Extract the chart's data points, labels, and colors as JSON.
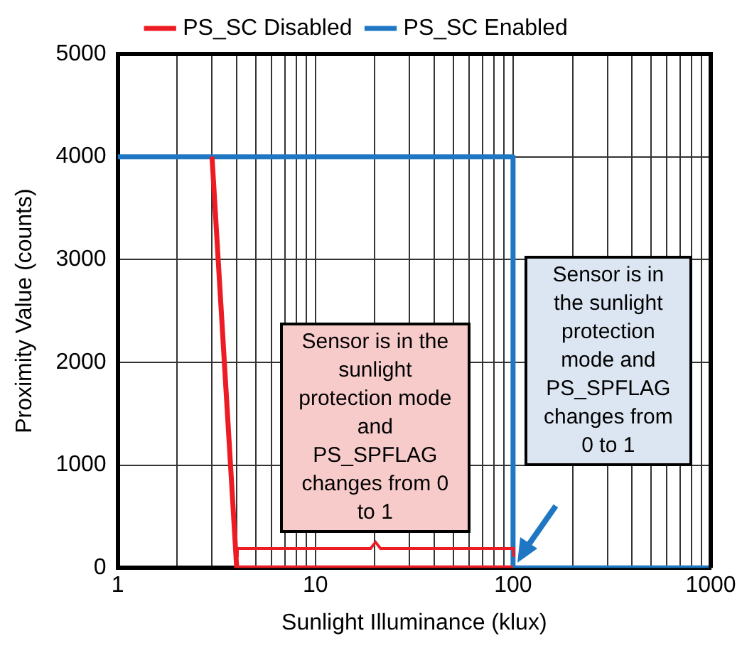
{
  "chart_data": {
    "type": "line",
    "xlabel": "Sunlight Illuminance (klux)",
    "ylabel": "Proximity Value (counts)",
    "log": "x",
    "grid": true,
    "legend": "top",
    "marker": "none",
    "line_style": "solid",
    "xlim": [
      1,
      1000
    ],
    "xticks": [
      1,
      {
        "value": 2,
        "label": null
      },
      {
        "value": 3,
        "label": null
      },
      {
        "value": 4,
        "label": null
      },
      {
        "value": 5,
        "label": null
      },
      {
        "value": 6,
        "label": null
      },
      {
        "value": 7,
        "label": null
      },
      {
        "value": 8,
        "label": null
      },
      {
        "value": 9,
        "label": null
      },
      10,
      {
        "value": 20,
        "label": null
      },
      {
        "value": 30,
        "label": null
      },
      {
        "value": 40,
        "label": null
      },
      {
        "value": 50,
        "label": null
      },
      {
        "value": 60,
        "label": null
      },
      {
        "value": 70,
        "label": null
      },
      {
        "value": 80,
        "label": null
      },
      {
        "value": 90,
        "label": null
      },
      100,
      {
        "value": 200,
        "label": null
      },
      {
        "value": 300,
        "label": null
      },
      {
        "value": 400,
        "label": null
      },
      {
        "value": 500,
        "label": null
      },
      {
        "value": 600,
        "label": null
      },
      {
        "value": 700,
        "label": null
      },
      {
        "value": 800,
        "label": null
      },
      {
        "value": 900,
        "label": null
      },
      1000
    ],
    "ylim": [
      0,
      5000
    ],
    "yticks": [
      0,
      1000,
      2000,
      3000,
      4000,
      5000
    ],
    "series": [
      {
        "name": "PS_SC Disabled",
        "color": "#ed1c24",
        "x": [
          3,
          4,
          100
        ],
        "values": [
          4000,
          0,
          0
        ]
      },
      {
        "name": "PS_SC Enabled",
        "color": "#1f77c4",
        "x": [
          1,
          100,
          100,
          1000
        ],
        "values": [
          4000,
          4000,
          0,
          0
        ]
      }
    ],
    "annotations": [
      "Sensor is in the sunlight protection mode and PS_SPFLAG changes from 0 to 1",
      "Sensor is in the sunlight protection mode and PS_SPFLAG changes from 0 to 1"
    ]
  }
}
